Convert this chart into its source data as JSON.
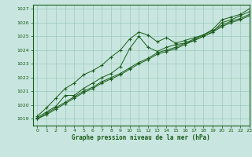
{
  "title": "Graphe pression niveau de la mer (hPa)",
  "bg_color": "#c8e6df",
  "grid_color": "#9cc8bc",
  "line_color": "#1a5c1a",
  "xlim": [
    -0.5,
    23
  ],
  "ylim": [
    1018.5,
    1027.3
  ],
  "yticks": [
    1019,
    1020,
    1021,
    1022,
    1023,
    1024,
    1025,
    1026,
    1027
  ],
  "xticks": [
    0,
    1,
    2,
    3,
    4,
    5,
    6,
    7,
    8,
    9,
    10,
    11,
    12,
    13,
    14,
    15,
    16,
    17,
    18,
    19,
    20,
    21,
    22,
    23
  ],
  "series": [
    [
      1019.1,
      1019.5,
      1019.9,
      1020.7,
      1020.7,
      1021.2,
      1021.6,
      1022.0,
      1022.3,
      1022.8,
      1024.1,
      1025.0,
      1024.2,
      1023.9,
      1024.2,
      1024.4,
      1024.5,
      1024.7,
      1025.0,
      1025.3,
      1026.0,
      1026.2,
      1026.5,
      1026.8
    ],
    [
      1019.0,
      1019.4,
      1019.8,
      1020.2,
      1020.6,
      1021.0,
      1021.3,
      1021.7,
      1022.0,
      1022.3,
      1022.7,
      1023.1,
      1023.4,
      1023.8,
      1024.0,
      1024.2,
      1024.5,
      1024.8,
      1025.1,
      1025.4,
      1025.8,
      1026.1,
      1026.3,
      1026.6
    ],
    [
      1019.0,
      1019.3,
      1019.7,
      1020.1,
      1020.5,
      1020.9,
      1021.2,
      1021.6,
      1021.9,
      1022.2,
      1022.6,
      1023.0,
      1023.3,
      1023.7,
      1023.9,
      1024.1,
      1024.4,
      1024.7,
      1025.0,
      1025.3,
      1025.7,
      1026.0,
      1026.2,
      1026.5
    ],
    [
      1019.2,
      1019.8,
      1020.5,
      1021.2,
      1021.6,
      1022.2,
      1022.5,
      1022.9,
      1023.5,
      1024.0,
      1024.8,
      1025.3,
      1025.1,
      1024.6,
      1024.9,
      1024.5,
      1024.7,
      1024.9,
      1025.1,
      1025.5,
      1026.2,
      1026.4,
      1026.6,
      1027.0
    ]
  ]
}
